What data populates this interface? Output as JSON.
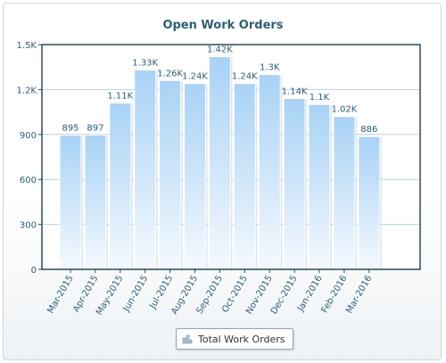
{
  "chart_data": {
    "type": "bar",
    "title": "Open Work Orders",
    "categories": [
      "Mar-2015",
      "Apr-2015",
      "May-2015",
      "Jun-2015",
      "Jul-2015",
      "Aug-2015",
      "Sep-2015",
      "Oct-2015",
      "Nov-2015",
      "Dec-2015",
      "Jan-2016",
      "Feb-2016",
      "Mar-2016"
    ],
    "series": [
      {
        "name": "Total Work Orders",
        "values": [
          895,
          897,
          1110,
          1330,
          1260,
          1240,
          1420,
          1240,
          1300,
          1140,
          1100,
          1020,
          886
        ],
        "labels": [
          "895",
          "897",
          "1.11K",
          "1.33K",
          "1.26K",
          "1.24K",
          "1.42K",
          "1.24K",
          "1.3K",
          "1.14K",
          "1.1K",
          "1.02K",
          "886"
        ]
      }
    ],
    "ylim": [
      0,
      1500
    ],
    "yticks": [
      0,
      300,
      600,
      900,
      1200,
      1500
    ],
    "ytick_labels": [
      "0",
      "300",
      "600",
      "900",
      "1.2K",
      "1.5K"
    ],
    "grid": true,
    "legend_position": "bottom",
    "colors": {
      "bar_top": "#a9d2f5",
      "bar_bottom": "#f2f8fe",
      "axis": "#2b4a5a",
      "text": "#2e5e76",
      "grid": "#b9cfda"
    }
  }
}
